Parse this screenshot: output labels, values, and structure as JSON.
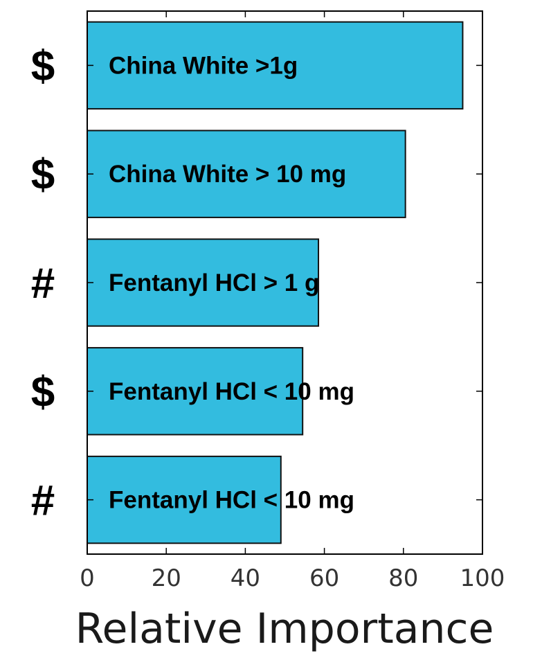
{
  "chart_data": {
    "type": "bar",
    "orientation": "horizontal",
    "categories": [
      "China White >1g",
      "China White > 10 mg",
      "Fentanyl HCl > 1 g",
      "Fentanyl HCl < 10 mg",
      "Fentanyl HCl < 10 mg"
    ],
    "symbols": [
      "$",
      "$",
      "#",
      "$",
      "#"
    ],
    "values": [
      95,
      80.5,
      58.5,
      54.5,
      49
    ],
    "xlabel": "Relative Importance",
    "ylabel": "",
    "xlim": [
      0,
      100
    ],
    "xticks": [
      "0",
      "20",
      "40",
      "60",
      "80",
      "100"
    ],
    "grid": false,
    "legend": "none",
    "bar_color": "#33bcdf",
    "bar_edge_color": "#111111"
  }
}
